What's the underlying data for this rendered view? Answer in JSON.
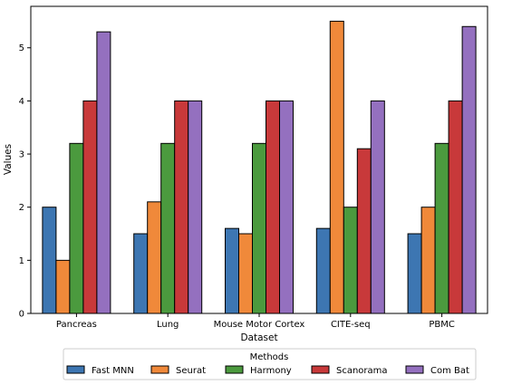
{
  "chart_data": {
    "type": "bar",
    "title": "",
    "xlabel": "Dataset",
    "ylabel": "Values",
    "ylim": [
      0,
      5.78
    ],
    "yticks": [
      0,
      1,
      2,
      3,
      4,
      5
    ],
    "categories": [
      "Pancreas",
      "Lung",
      "Mouse Motor Cortex",
      "CITE-seq",
      "PBMC"
    ],
    "series": [
      {
        "name": "Fast MNN",
        "color": "#3d76b2",
        "values": [
          2.0,
          1.5,
          1.6,
          1.6,
          1.5
        ]
      },
      {
        "name": "Seurat",
        "color": "#f0893a",
        "values": [
          1.0,
          2.1,
          1.5,
          5.5,
          2.0
        ]
      },
      {
        "name": "Harmony",
        "color": "#4b9a3e",
        "values": [
          3.2,
          3.2,
          3.2,
          2.0,
          3.2
        ]
      },
      {
        "name": "Scanorama",
        "color": "#c8393a",
        "values": [
          4.0,
          4.0,
          4.0,
          3.1,
          4.0
        ]
      },
      {
        "name": "Com Bat",
        "color": "#9470bf",
        "values": [
          5.3,
          4.0,
          4.0,
          4.0,
          5.4
        ]
      }
    ],
    "grid": false,
    "legend": {
      "title": "Methods",
      "placement": "bottom-center",
      "columns": 5
    }
  }
}
